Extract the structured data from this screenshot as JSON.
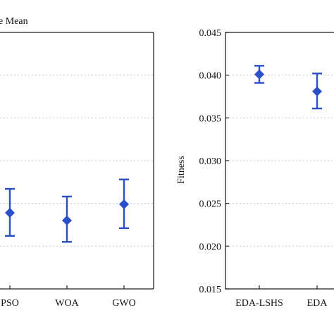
{
  "chart_data": [
    {
      "type": "scatter",
      "title": "e Mean",
      "xlabel": "",
      "ylabel": "",
      "categories": [
        "PSO",
        "WOA",
        "GWO"
      ],
      "category_labels": [
        "PSO",
        "WOA",
        "GWO"
      ],
      "values": [
        0.0239,
        0.023,
        0.0249
      ],
      "error_low": [
        0.0212,
        0.0205,
        0.0221
      ],
      "error_high": [
        0.0267,
        0.0258,
        0.0278
      ],
      "ylim": [
        0.015,
        0.045
      ],
      "grid": "horizontal dotted",
      "marker_color": "#2b4fc9"
    },
    {
      "type": "scatter",
      "title": "",
      "xlabel": "",
      "ylabel": "Fitness",
      "categories": [
        "EDA-LSHS",
        "EDA"
      ],
      "values": [
        0.0401,
        0.0381
      ],
      "error_low": [
        0.0391,
        0.0361
      ],
      "error_high": [
        0.0411,
        0.0402
      ],
      "ylim": [
        0.015,
        0.045
      ],
      "yticks": [
        "0.045",
        "0.040",
        "0.035",
        "0.030",
        "0.025",
        "0.020",
        "0.015"
      ],
      "grid": "horizontal dotted",
      "marker_color": "#2b4fc9"
    }
  ]
}
